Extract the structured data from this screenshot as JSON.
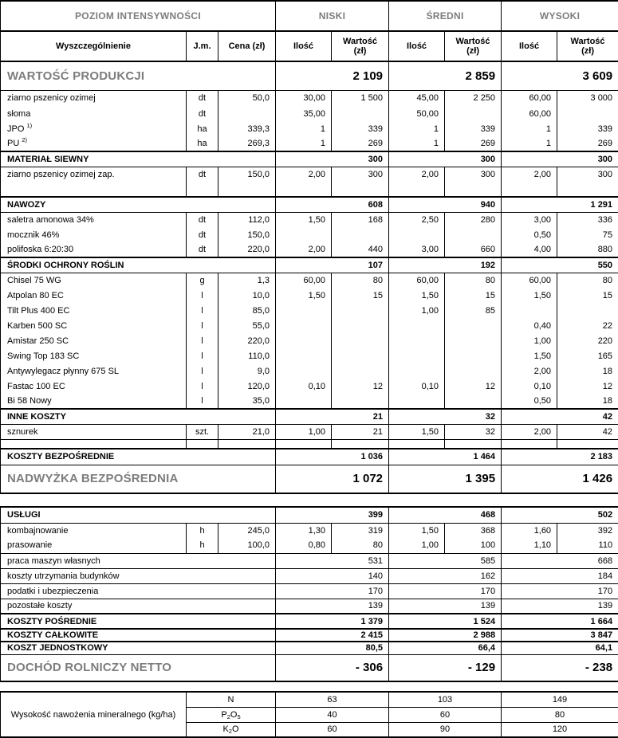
{
  "colors": {
    "accent_gray": "#7d7d7d",
    "border": "#000000",
    "background": "#ffffff"
  },
  "header": {
    "poziom": "POZIOM INTENSYWNOŚCI",
    "levels": [
      "NISKI",
      "ŚREDNI",
      "WYSOKI"
    ],
    "spec": "Wyszczególnienie",
    "jm": "J.m.",
    "cena": "Cena (zł)",
    "ilosc": "Ilość",
    "wartosc": [
      "Wartość",
      "(zł)"
    ]
  },
  "main_table": {
    "rows": [
      {
        "type": "gray",
        "label": "WARTOŚĆ PRODUKCJI",
        "values": [
          "2 109",
          "2 859",
          "3 609"
        ],
        "top": "thick",
        "ht": 36
      },
      {
        "type": "item",
        "label": "ziarno pszenicy ozimej",
        "jm": "dt",
        "cena": "50,0",
        "cells": [
          "30,00",
          "1 500",
          "45,00",
          "2 250",
          "60,00",
          "3 000"
        ],
        "top": "thin",
        "ht": 20
      },
      {
        "type": "item",
        "label": "słoma",
        "jm": "dt",
        "cena": "",
        "cells": [
          "35,00",
          "",
          "50,00",
          "",
          "60,00",
          ""
        ],
        "ht": 19
      },
      {
        "type": "item",
        "label": "JPO ^1)",
        "jm": "ha",
        "cena": "339,3",
        "cells": [
          "1",
          "339",
          "1",
          "339",
          "1",
          "339"
        ],
        "ht": 19
      },
      {
        "type": "item",
        "label": "PU ^2)",
        "jm": "ha",
        "cena": "269,3",
        "cells": [
          "1",
          "269",
          "1",
          "269",
          "1",
          "269"
        ],
        "ht": 19
      },
      {
        "type": "bold",
        "label": "MATERIAŁ SIEWNY",
        "values": [
          "300",
          "300",
          "300"
        ],
        "top": "thick",
        "ht": 19
      },
      {
        "type": "item",
        "label": "ziarno pszenicy ozimej zap.",
        "jm": "dt",
        "cena": "150,0",
        "cells": [
          "2,00",
          "300",
          "2,00",
          "300",
          "2,00",
          "300"
        ],
        "top": "thin",
        "ht": 19
      },
      {
        "type": "item",
        "label": "",
        "jm": "",
        "cena": "",
        "cells": [
          "",
          "",
          "",
          "",
          "",
          ""
        ],
        "ht": 19
      },
      {
        "type": "bold",
        "label": "NAWOZY",
        "values": [
          "608",
          "940",
          "1 291"
        ],
        "top": "thick",
        "ht": 19
      },
      {
        "type": "item",
        "label": "saletra amonowa 34%",
        "jm": "dt",
        "cena": "112,0",
        "cells": [
          "1,50",
          "168",
          "2,50",
          "280",
          "3,00",
          "336"
        ],
        "top": "thin",
        "ht": 19
      },
      {
        "type": "item",
        "label": "mocznik 46%",
        "jm": "dt",
        "cena": "150,0",
        "cells": [
          "",
          "",
          "",
          "",
          "0,50",
          "75"
        ],
        "ht": 19
      },
      {
        "type": "item",
        "label": "polifoska 6:20:30",
        "jm": "dt",
        "cena": "220,0",
        "cells": [
          "2,00",
          "440",
          "3,00",
          "660",
          "4,00",
          "880"
        ],
        "ht": 19
      },
      {
        "type": "bold",
        "label": "ŚRODKI OCHRONY ROŚLIN",
        "values": [
          "107",
          "192",
          "550"
        ],
        "top": "thick",
        "ht": 19
      },
      {
        "type": "item",
        "label": "Chisel 75 WG",
        "jm": "g",
        "cena": "1,3",
        "cells": [
          "60,00",
          "80",
          "60,00",
          "80",
          "60,00",
          "80"
        ],
        "top": "thin",
        "ht": 19
      },
      {
        "type": "item",
        "label": "Atpolan 80 EC",
        "jm": "l",
        "cena": "10,0",
        "cells": [
          "1,50",
          "15",
          "1,50",
          "15",
          "1,50",
          "15"
        ],
        "ht": 19
      },
      {
        "type": "item",
        "label": "Tilt Plus 400 EC",
        "jm": "l",
        "cena": "85,0",
        "cells": [
          "",
          "",
          "1,00",
          "85",
          "",
          ""
        ],
        "ht": 19
      },
      {
        "type": "item",
        "label": "Karben 500 SC",
        "jm": "l",
        "cena": "55,0",
        "cells": [
          "",
          "",
          "",
          "",
          "0,40",
          "22"
        ],
        "ht": 19
      },
      {
        "type": "item",
        "label": "Amistar 250 SC",
        "jm": "l",
        "cena": "220,0",
        "cells": [
          "",
          "",
          "",
          "",
          "1,00",
          "220"
        ],
        "ht": 19
      },
      {
        "type": "item",
        "label": "Swing Top 183 SC",
        "jm": "l",
        "cena": "110,0",
        "cells": [
          "",
          "",
          "",
          "",
          "1,50",
          "165"
        ],
        "ht": 19
      },
      {
        "type": "item",
        "label": "Antywylegacz płynny 675 SL",
        "jm": "l",
        "cena": "9,0",
        "cells": [
          "",
          "",
          "",
          "",
          "2,00",
          "18"
        ],
        "ht": 19
      },
      {
        "type": "item",
        "label": "Fastac 100 EC",
        "jm": "l",
        "cena": "120,0",
        "cells": [
          "0,10",
          "12",
          "0,10",
          "12",
          "0,10",
          "12"
        ],
        "ht": 19
      },
      {
        "type": "item",
        "label": "Bi 58 Nowy",
        "jm": "l",
        "cena": "35,0",
        "cells": [
          "",
          "",
          "",
          "",
          "0,50",
          "18"
        ],
        "ht": 19
      },
      {
        "type": "bold",
        "label": "INNE KOSZTY",
        "values": [
          "21",
          "32",
          "42"
        ],
        "top": "thick",
        "ht": 19
      },
      {
        "type": "item",
        "label": "sznurek",
        "jm": "szt.",
        "cena": "21,0",
        "cells": [
          "1,00",
          "21",
          "1,50",
          "32",
          "2,00",
          "42"
        ],
        "top": "thin",
        "ht": 19
      },
      {
        "type": "item",
        "label": "",
        "jm": "",
        "cena": "",
        "cells": [
          "",
          "",
          "",
          "",
          "",
          ""
        ],
        "top": "thin",
        "ht": 12
      },
      {
        "type": "bold",
        "label": "KOSZTY BEZPOŚREDNIE",
        "values": [
          "1 036",
          "1 464",
          "2 183"
        ],
        "top": "thick",
        "ht": 20
      },
      {
        "type": "gray",
        "label": "NADWYŻKA BEZPOŚREDNIA",
        "values": [
          "1 072",
          "1 395",
          "1 426"
        ],
        "top": "thin",
        "ht": 36
      }
    ]
  },
  "second_table": {
    "rows": [
      {
        "type": "bold",
        "label": "USŁUGI",
        "values": [
          "399",
          "468",
          "502"
        ],
        "ht": 20
      },
      {
        "type": "item",
        "label": "kombajnowanie",
        "jm": "h",
        "cena": "245,0",
        "cells": [
          "1,30",
          "319",
          "1,50",
          "368",
          "1,60",
          "392"
        ],
        "top": "thin",
        "ht": 19
      },
      {
        "type": "item",
        "label": "prasowanie",
        "jm": "h",
        "cena": "100,0",
        "cells": [
          "0,80",
          "80",
          "1,00",
          "100",
          "1,10",
          "110"
        ],
        "ht": 19
      },
      {
        "type": "mitem",
        "label": "praca maszyn własnych",
        "values": [
          "531",
          "585",
          "668"
        ],
        "top": "thin",
        "ht": 19
      },
      {
        "type": "mitem",
        "label": "koszty utrzymania budynków",
        "values": [
          "140",
          "162",
          "184"
        ],
        "top": "thin",
        "ht": 19
      },
      {
        "type": "mitem",
        "label": "podatki i ubezpieczenia",
        "values": [
          "170",
          "170",
          "170"
        ],
        "top": "thin",
        "ht": 19
      },
      {
        "type": "mitem",
        "label": "pozostałe koszty",
        "values": [
          "139",
          "139",
          "139"
        ],
        "top": "thin",
        "ht": 19
      },
      {
        "type": "bold",
        "label": "KOSZTY POŚREDNIE",
        "values": [
          "1 379",
          "1 524",
          "1 664"
        ],
        "top": "thick",
        "ht": 19
      },
      {
        "type": "bold",
        "label": "KOSZTY CAŁKOWITE",
        "values": [
          "2 415",
          "2 988",
          "3 847"
        ],
        "top": "thick",
        "ht": 16
      },
      {
        "type": "bold",
        "label": "KOSZT JEDNOSTKOWY",
        "values": [
          "80,5",
          "66,4",
          "64,1"
        ],
        "top": "thick",
        "ht": 16
      },
      {
        "type": "gray",
        "label": "DOCHÓD ROLNICZY NETTO",
        "values": [
          "- 306",
          "- 129",
          "- 238"
        ],
        "top": "thin",
        "ht": 34
      }
    ]
  },
  "fertilizer_table": {
    "label": "Wysokość nawożenia mineralnego (kg/ha)",
    "rows": [
      {
        "chem": "N",
        "values": [
          "63",
          "103",
          "149"
        ]
      },
      {
        "chem": "P_2O_5",
        "values": [
          "40",
          "60",
          "80"
        ]
      },
      {
        "chem": "K_2O",
        "values": [
          "60",
          "90",
          "120"
        ]
      }
    ]
  }
}
